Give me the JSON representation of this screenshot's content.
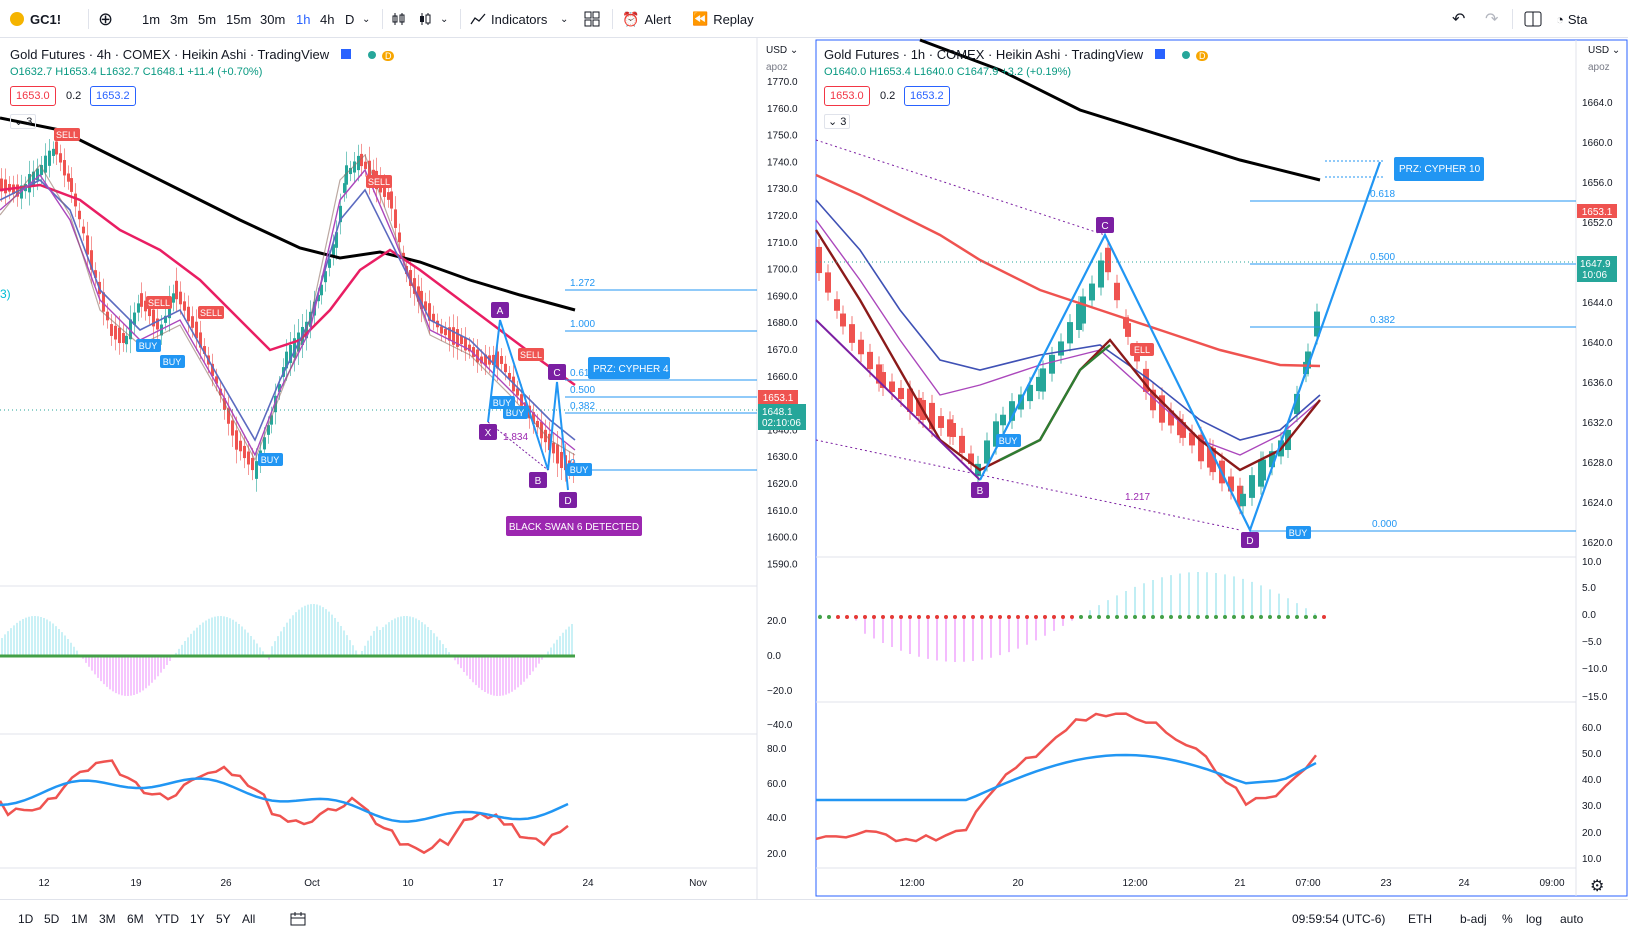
{
  "toolbar": {
    "symbol": "GC1!",
    "intervals": [
      "1m",
      "3m",
      "5m",
      "15m",
      "30m",
      "1h",
      "4h",
      "D"
    ],
    "active_interval": "1h",
    "indicators_label": "Indicators",
    "alert_label": "Alert",
    "replay_label": "Replay",
    "right_partial": "Sta"
  },
  "left": {
    "title": "Gold Futures · 4h · COMEX · Heikin Ashi · TradingView",
    "badge": "D",
    "ohlc": "O1632.7 H1653.4 L1632.7 C1648.1 +11.4 (+0.70%)",
    "bid": "1653.0",
    "spread": "0.2",
    "ask": "1653.2",
    "legend_count": "3",
    "edge_label": "3)",
    "currency": "USD",
    "scale_mode": "apoz",
    "price_ticks": [
      "1770.0",
      "1760.0",
      "1750.0",
      "1740.0",
      "1730.0",
      "1720.0",
      "1710.0",
      "1700.0",
      "1690.0",
      "1680.0",
      "1670.0",
      "1660.0",
      "1650.0",
      "1640.0",
      "1630.0",
      "1620.0",
      "1610.0",
      "1600.0",
      "1590.0"
    ],
    "osc1_ticks": [
      "20.0",
      "0.0",
      "−20.0",
      "−40.0"
    ],
    "osc2_ticks": [
      "80.0",
      "60.0",
      "40.0",
      "20.0"
    ],
    "time_ticks": [
      "12",
      "19",
      "26",
      "Oct",
      "10",
      "17",
      "24",
      "Nov"
    ],
    "price_tags": {
      "last_red": "1653.1",
      "last_green": "1648.1",
      "countdown": "02:10:06"
    },
    "fib_levels": [
      "1.272",
      "1.000",
      "0.618",
      "0.500",
      "0.382",
      "0"
    ],
    "pattern_points": [
      "X",
      "A",
      "B",
      "C",
      "D"
    ],
    "pattern_ratio": "1.834",
    "prz_label": "PRZ: CYPHER 4",
    "detected_label": "BLACK SWAN 6 DETECTED",
    "signals": {
      "sell": "SELL",
      "buy": "BUY"
    }
  },
  "right": {
    "title": "Gold Futures · 1h · COMEX · Heikin Ashi · TradingView",
    "badge": "D",
    "ohlc": "O1640.0 H1653.4 L1640.0 C1647.9 +3.2 (+0.19%)",
    "bid": "1653.0",
    "spread": "0.2",
    "ask": "1653.2",
    "legend_count": "3",
    "currency": "USD",
    "scale_mode": "apoz",
    "price_ticks": [
      "1664.0",
      "1660.0",
      "1656.0",
      "1652.0",
      "1648.0",
      "1644.0",
      "1640.0",
      "1636.0",
      "1632.0",
      "1628.0",
      "1624.0",
      "1620.0"
    ],
    "osc1_ticks": [
      "10.0",
      "5.0",
      "0.0",
      "−5.0",
      "−10.0",
      "−15.0"
    ],
    "osc2_ticks": [
      "60.0",
      "50.0",
      "40.0",
      "30.0",
      "20.0",
      "10.0"
    ],
    "time_ticks": [
      "12:00",
      "20",
      "12:00",
      "21",
      "07:00",
      "23",
      "24",
      "09:00"
    ],
    "price_tags": {
      "last_red": "1653.1",
      "last_green": "1647.9",
      "countdown": "10:06"
    },
    "fib_levels": [
      "0.618",
      "0.500",
      "0.382",
      "0.000"
    ],
    "pattern_points": [
      "B",
      "C",
      "D"
    ],
    "pattern_ratio": "1.217",
    "prz_label": "PRZ: CYPHER 10",
    "signals": {
      "sell": "ELL",
      "buy": "BUY"
    }
  },
  "bottombar": {
    "ranges": [
      "1D",
      "5D",
      "1M",
      "3M",
      "6M",
      "YTD",
      "1Y",
      "5Y",
      "All"
    ],
    "clock": "09:59:54 (UTC-6)",
    "session": "ETH",
    "adj": "b-adj",
    "pct": "%",
    "log": "log",
    "auto": "auto"
  },
  "colors": {
    "up": "#26a69a",
    "down": "#ef5350",
    "pattern": "#7b1fa2",
    "fib": "#2196f3",
    "accent": "#2962ff"
  }
}
